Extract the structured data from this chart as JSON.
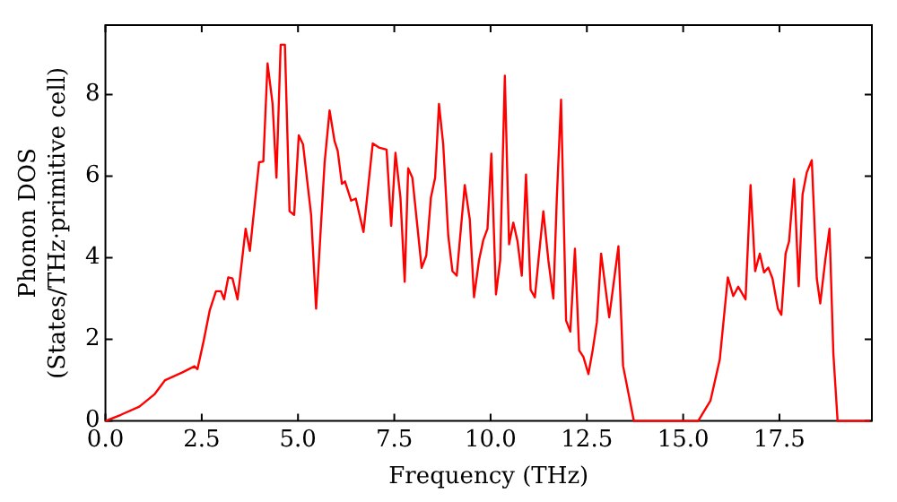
{
  "chart_data": {
    "type": "line",
    "xlabel": "Frequency (THz)",
    "ylabel": "Phonon DOS\n(States/THz·primitive cell)",
    "xlim": [
      0,
      19.9
    ],
    "ylim": [
      0,
      9.7
    ],
    "xticks": [
      {
        "value": 0,
        "label": "0.0"
      },
      {
        "value": 2.5,
        "label": "2.5"
      },
      {
        "value": 5,
        "label": "5.0"
      },
      {
        "value": 7.5,
        "label": "7.5"
      },
      {
        "value": 10,
        "label": "10.0"
      },
      {
        "value": 12.5,
        "label": "12.5"
      },
      {
        "value": 15,
        "label": "15.0"
      },
      {
        "value": 17.5,
        "label": "17.5"
      }
    ],
    "yticks": [
      0,
      2,
      4,
      6,
      8
    ],
    "grid": false,
    "legend": false,
    "marker": "none",
    "line_style": "solid",
    "series": [
      {
        "color": "#ff0000",
        "x": [
          0,
          0.4,
          0.88,
          1.28,
          1.55,
          2.0,
          2.31,
          2.39,
          2.55,
          2.71,
          2.87,
          3.0,
          3.08,
          3.19,
          3.3,
          3.43,
          3.64,
          3.75,
          3.99,
          4.1,
          4.21,
          4.34,
          4.44,
          4.55,
          4.66,
          4.78,
          4.9,
          5.02,
          5.13,
          5.34,
          5.47,
          5.69,
          5.82,
          5.95,
          6.03,
          6.14,
          6.22,
          6.38,
          6.5,
          6.7,
          6.94,
          7.1,
          7.3,
          7.42,
          7.53,
          7.66,
          7.77,
          7.86,
          7.97,
          8.21,
          8.33,
          8.45,
          8.56,
          8.66,
          8.77,
          8.9,
          9.01,
          9.12,
          9.33,
          9.46,
          9.57,
          9.7,
          9.81,
          9.92,
          10.02,
          10.14,
          10.25,
          10.37,
          10.48,
          10.59,
          10.7,
          10.81,
          10.92,
          11.04,
          11.15,
          11.26,
          11.37,
          11.5,
          11.63,
          11.72,
          11.83,
          11.96,
          12.07,
          12.19,
          12.3,
          12.41,
          12.54,
          12.65,
          12.76,
          12.87,
          13.08,
          13.32,
          13.44,
          13.72,
          15.39,
          15.71,
          15.95,
          16.16,
          16.3,
          16.43,
          16.62,
          16.75,
          16.87,
          16.99,
          17.1,
          17.21,
          17.32,
          17.46,
          17.55,
          17.66,
          17.75,
          17.88,
          18.0,
          18.1,
          18.21,
          18.34,
          18.47,
          18.56,
          18.69,
          18.8,
          18.9,
          19.01,
          19.85
        ],
        "values": [
          0,
          0.15,
          0.35,
          0.66,
          1.0,
          1.19,
          1.34,
          1.27,
          1.96,
          2.72,
          3.18,
          3.18,
          2.98,
          3.52,
          3.49,
          2.98,
          4.71,
          4.17,
          6.34,
          6.36,
          8.76,
          7.77,
          5.96,
          9.22,
          9.22,
          5.14,
          5.05,
          7.0,
          6.78,
          5.05,
          2.75,
          6.32,
          7.61,
          6.85,
          6.62,
          5.81,
          5.87,
          5.4,
          5.45,
          4.63,
          6.8,
          6.7,
          6.65,
          4.78,
          6.57,
          5.47,
          3.41,
          6.19,
          5.96,
          3.75,
          4.05,
          5.47,
          5.96,
          7.77,
          6.78,
          4.55,
          3.67,
          3.56,
          5.78,
          4.94,
          3.03,
          3.94,
          4.43,
          4.71,
          6.55,
          3.1,
          3.94,
          8.46,
          4.33,
          4.86,
          4.4,
          3.56,
          6.04,
          3.21,
          3.03,
          4.1,
          5.14,
          3.94,
          3.0,
          5.47,
          7.87,
          2.46,
          2.19,
          4.22,
          1.73,
          1.57,
          1.15,
          1.73,
          2.42,
          4.1,
          2.54,
          4.28,
          1.35,
          0,
          0,
          0.5,
          1.5,
          3.52,
          3.06,
          3.29,
          2.98,
          5.78,
          3.67,
          4.1,
          3.64,
          3.76,
          3.49,
          2.75,
          2.6,
          4.1,
          4.4,
          5.93,
          3.3,
          5.55,
          6.09,
          6.39,
          3.49,
          2.88,
          3.94,
          4.71,
          1.65,
          0,
          0
        ]
      }
    ]
  }
}
